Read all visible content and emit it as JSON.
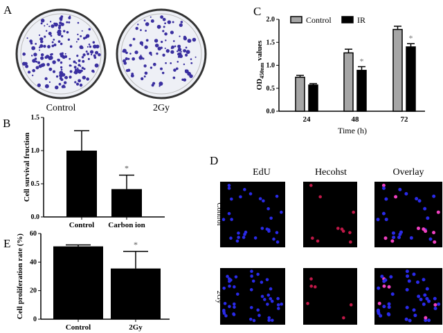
{
  "panels": {
    "A": {
      "label": "A",
      "dish_labels": [
        "Control",
        "2Gy"
      ]
    },
    "D": {
      "label": "D",
      "column_headers": [
        "EdU",
        "Hecohst",
        "Overlay"
      ],
      "row_labels": [
        "Control",
        "2Gy"
      ]
    }
  },
  "colors": {
    "control_gray": "#a6a6a6",
    "bar_black": "#000000",
    "nuclei_blue": "#2020e0",
    "edu_red": "#e0206a"
  },
  "chart_data": [
    {
      "panel": "B",
      "type": "bar",
      "categories": [
        "Control",
        "Carbon ion"
      ],
      "values": [
        1.0,
        0.42
      ],
      "errors": [
        0.3,
        0.21
      ],
      "significance": [
        "",
        "*"
      ],
      "ylabel": "Cell survival fruction",
      "xlabel": "",
      "ylim": [
        0,
        1.5
      ],
      "yticks": [
        "0.0",
        "0.5",
        "1.0",
        "1.5"
      ]
    },
    {
      "panel": "C",
      "type": "bar",
      "categories": [
        "24",
        "48",
        "72"
      ],
      "series": [
        {
          "name": "Control",
          "values": [
            0.74,
            1.27,
            1.78
          ],
          "errors": [
            0.04,
            0.08,
            0.07
          ],
          "color": "#a6a6a6"
        },
        {
          "name": "IR",
          "values": [
            0.57,
            0.89,
            1.4
          ],
          "errors": [
            0.03,
            0.08,
            0.07
          ],
          "color": "#000000",
          "significance": [
            "",
            "*",
            "*"
          ]
        }
      ],
      "ylabel_main": "OD",
      "ylabel_sub": "450nm",
      "ylabel_tail": " values",
      "xlabel": "Time (h)",
      "ylim": [
        0,
        2.0
      ],
      "yticks": [
        "0.0",
        "0.5",
        "1.0",
        "1.5",
        "2.0"
      ],
      "legend": "top"
    },
    {
      "panel": "E",
      "type": "bar",
      "categories": [
        "Control",
        "2Gy"
      ],
      "values": [
        51,
        35.5
      ],
      "errors": [
        1,
        12
      ],
      "significance": [
        "",
        "*"
      ],
      "ylabel": "Cell proliferation rate (%)",
      "xlabel": "",
      "ylim": [
        0,
        60
      ],
      "yticks": [
        "0",
        "20",
        "40",
        "60"
      ]
    }
  ]
}
